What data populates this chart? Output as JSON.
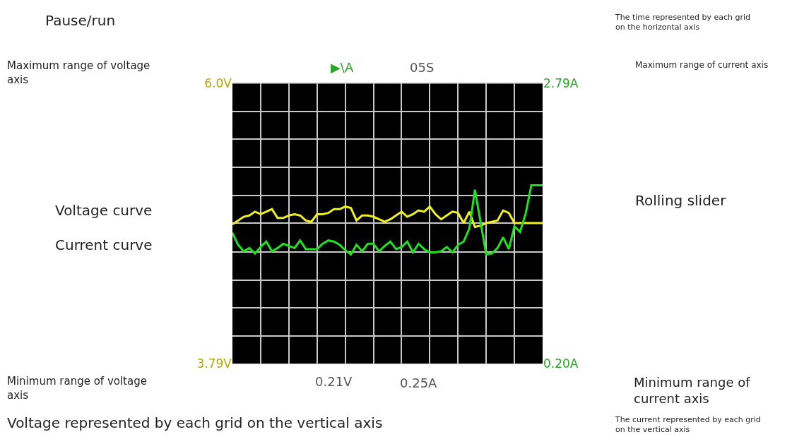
{
  "chart_data": {
    "type": "line",
    "categories": [
      null,
      null,
      null,
      null,
      null,
      null,
      null,
      null,
      null,
      null,
      null,
      null,
      null,
      null,
      null,
      null,
      null,
      null,
      null,
      null,
      null,
      null,
      null,
      null,
      null,
      null,
      null,
      null,
      null,
      null,
      null,
      null,
      null,
      null,
      null,
      null,
      null,
      null,
      null,
      null,
      null,
      null,
      null,
      null,
      null,
      null,
      null,
      null,
      null,
      null,
      null,
      null,
      null,
      null,
      null,
      null
    ],
    "ylim": [
      3.79,
      6.0
    ],
    "yticks": [
      {
        "value": 3.79,
        "label": "3.79V"
      },
      {
        "value": 4.01,
        "label": null
      },
      {
        "value": 4.23,
        "label": null
      },
      {
        "value": 4.45,
        "label": null
      },
      {
        "value": 4.67,
        "label": null
      },
      {
        "value": 4.9,
        "label": null
      },
      {
        "value": 5.12,
        "label": null
      },
      {
        "value": 5.34,
        "label": null
      },
      {
        "value": 5.56,
        "label": null
      },
      {
        "value": 5.78,
        "label": null
      },
      {
        "value": 6.0,
        "label": "6.0V"
      }
    ],
    "y2lim": [
      0.2,
      2.79
    ],
    "y2ticks": [
      {
        "value": 0.2,
        "label": "0.20A"
      },
      {
        "value": 2.79,
        "label": "2.79A"
      }
    ],
    "tick_labels": "y",
    "grid": true,
    "series": [
      {
        "color": "#f0f020",
        "values": [
          4.89,
          4.92,
          4.95,
          4.96,
          4.99,
          4.97,
          4.99,
          5.01,
          4.94,
          4.94,
          4.96,
          4.97,
          4.96,
          4.92,
          4.91,
          4.97,
          4.97,
          4.98,
          5.01,
          5.01,
          5.03,
          5.02,
          4.92,
          4.96,
          4.96,
          4.95,
          4.93,
          4.91,
          4.93,
          4.96,
          4.99,
          4.95,
          4.97,
          5.0,
          4.99,
          5.03,
          4.97,
          4.93,
          4.96,
          4.99,
          4.98,
          4.9,
          4.99,
          4.87,
          4.88,
          4.9,
          4.91,
          4.92,
          5.0,
          4.98,
          4.9,
          4.9,
          4.9,
          4.9,
          4.9,
          4.9
        ]
      },
      {
        "color": "#20e020",
        "axis": "y2",
        "values": [
          1.41,
          1.3,
          1.24,
          1.27,
          1.22,
          1.28,
          1.33,
          1.24,
          1.27,
          1.31,
          1.29,
          1.27,
          1.34,
          1.26,
          1.26,
          1.26,
          1.31,
          1.34,
          1.33,
          1.3,
          1.25,
          1.21,
          1.3,
          1.24,
          1.31,
          1.31,
          1.24,
          1.29,
          1.33,
          1.26,
          1.28,
          1.33,
          1.23,
          1.31,
          1.26,
          1.23,
          1.23,
          1.24,
          1.28,
          1.23,
          1.3,
          1.33,
          1.45,
          1.81,
          1.51,
          1.21,
          1.22,
          1.27,
          1.37,
          1.26,
          1.47,
          1.42,
          1.59,
          1.85,
          1.85,
          1.85
        ]
      }
    ],
    "annotations": [
      "Pause/run",
      "The time represented by each grid on the horizontal axis",
      "Maximum range of voltage axis",
      "Maximum range of current axis",
      "Voltage curve",
      "Current curve",
      "Rolling slider",
      "Minimum range of voltage axis",
      "Minimum range of current axis",
      "Voltage represented by each grid on the vertical axis",
      "The current represented by each grid on the vertical axis",
      "▶\\A",
      "05S",
      "0.21V",
      "0.25A"
    ]
  }
}
